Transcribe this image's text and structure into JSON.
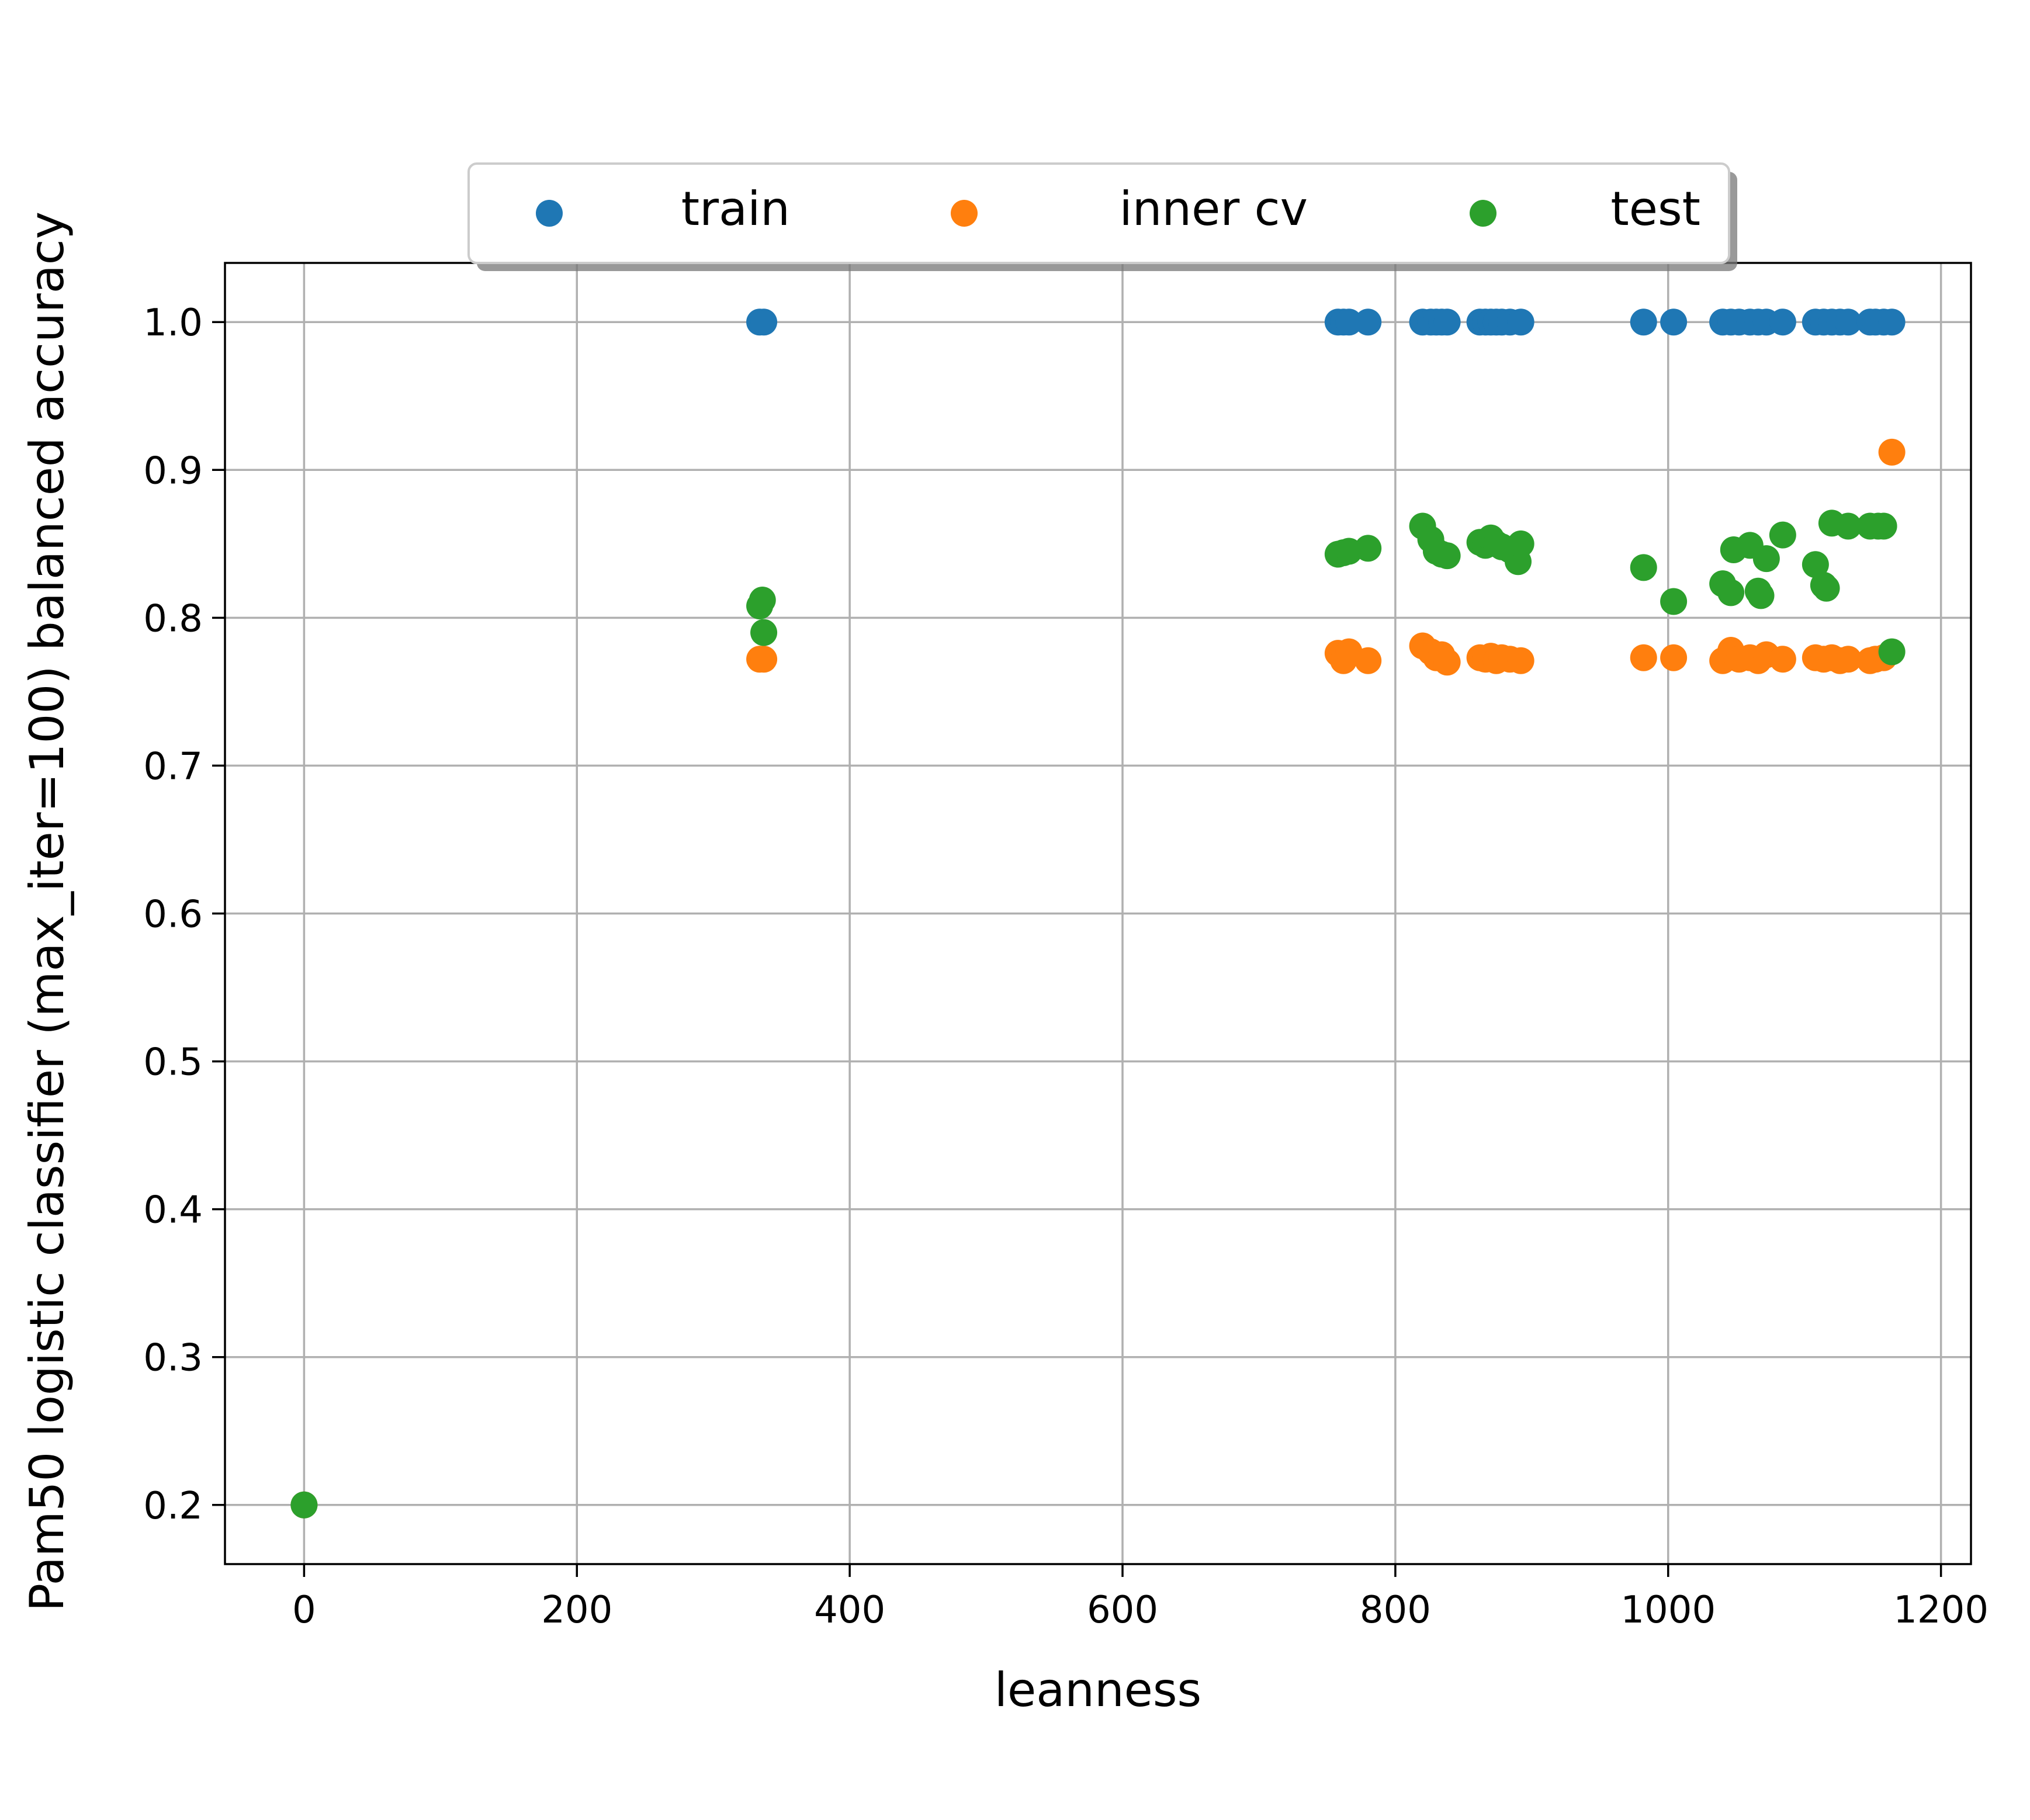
{
  "chart_data": {
    "type": "scatter",
    "title": "",
    "xlabel": "leanness",
    "ylabel": "Pam50 logistic classifier (max_iter=100) balanced accuracy",
    "xlim": [
      -58,
      1222
    ],
    "ylim": [
      0.16,
      1.04
    ],
    "xticks": [
      0,
      200,
      400,
      600,
      800,
      1000,
      1200
    ],
    "xtick_labels": [
      "0",
      "200",
      "400",
      "600",
      "800",
      "1000",
      "1200"
    ],
    "yticks": [
      0.2,
      0.3,
      0.4,
      0.5,
      0.6,
      0.7,
      0.8,
      0.9,
      1.0
    ],
    "ytick_labels": [
      "0.2",
      "0.3",
      "0.4",
      "0.5",
      "0.6",
      "0.7",
      "0.8",
      "0.9",
      "1.0"
    ],
    "grid": true,
    "legend": {
      "placement": "top-center",
      "columns": 3
    },
    "series": [
      {
        "name": "train",
        "color": "#1f77b4",
        "points": [
          [
            0,
            0.2
          ],
          [
            334,
            1.0
          ],
          [
            337,
            1.0
          ],
          [
            758,
            1.0
          ],
          [
            762,
            1.0
          ],
          [
            766,
            1.0
          ],
          [
            780,
            1.0
          ],
          [
            820,
            1.0
          ],
          [
            826,
            1.0
          ],
          [
            830,
            1.0
          ],
          [
            834,
            1.0
          ],
          [
            838,
            1.0
          ],
          [
            862,
            1.0
          ],
          [
            866,
            1.0
          ],
          [
            870,
            1.0
          ],
          [
            874,
            1.0
          ],
          [
            878,
            1.0
          ],
          [
            884,
            1.0
          ],
          [
            892,
            1.0
          ],
          [
            982,
            1.0
          ],
          [
            1004,
            1.0
          ],
          [
            1040,
            1.0
          ],
          [
            1046,
            1.0
          ],
          [
            1052,
            1.0
          ],
          [
            1060,
            1.0
          ],
          [
            1066,
            1.0
          ],
          [
            1072,
            1.0
          ],
          [
            1084,
            1.0
          ],
          [
            1108,
            1.0
          ],
          [
            1114,
            1.0
          ],
          [
            1120,
            1.0
          ],
          [
            1126,
            1.0
          ],
          [
            1132,
            1.0
          ],
          [
            1148,
            1.0
          ],
          [
            1152,
            1.0
          ],
          [
            1158,
            1.0
          ],
          [
            1164,
            1.0
          ]
        ]
      },
      {
        "name": "inner cv",
        "color": "#ff7f0e",
        "points": [
          [
            0,
            0.2
          ],
          [
            334,
            0.772
          ],
          [
            337,
            0.772
          ],
          [
            758,
            0.776
          ],
          [
            762,
            0.771
          ],
          [
            766,
            0.777
          ],
          [
            780,
            0.771
          ],
          [
            820,
            0.781
          ],
          [
            826,
            0.777
          ],
          [
            830,
            0.773
          ],
          [
            834,
            0.775
          ],
          [
            838,
            0.77
          ],
          [
            862,
            0.773
          ],
          [
            866,
            0.772
          ],
          [
            870,
            0.774
          ],
          [
            874,
            0.771
          ],
          [
            878,
            0.773
          ],
          [
            884,
            0.772
          ],
          [
            892,
            0.771
          ],
          [
            982,
            0.773
          ],
          [
            1004,
            0.773
          ],
          [
            1040,
            0.771
          ],
          [
            1046,
            0.778
          ],
          [
            1052,
            0.772
          ],
          [
            1060,
            0.773
          ],
          [
            1066,
            0.771
          ],
          [
            1072,
            0.775
          ],
          [
            1084,
            0.772
          ],
          [
            1108,
            0.773
          ],
          [
            1114,
            0.772
          ],
          [
            1120,
            0.773
          ],
          [
            1126,
            0.771
          ],
          [
            1132,
            0.772
          ],
          [
            1148,
            0.771
          ],
          [
            1152,
            0.772
          ],
          [
            1158,
            0.773
          ],
          [
            1164,
            0.912
          ]
        ]
      },
      {
        "name": "test",
        "color": "#2ca02c",
        "points": [
          [
            0,
            0.2
          ],
          [
            334,
            0.808
          ],
          [
            336,
            0.812
          ],
          [
            337,
            0.79
          ],
          [
            758,
            0.843
          ],
          [
            762,
            0.844
          ],
          [
            766,
            0.845
          ],
          [
            780,
            0.847
          ],
          [
            820,
            0.862
          ],
          [
            826,
            0.853
          ],
          [
            830,
            0.845
          ],
          [
            834,
            0.843
          ],
          [
            838,
            0.842
          ],
          [
            862,
            0.851
          ],
          [
            866,
            0.849
          ],
          [
            870,
            0.854
          ],
          [
            874,
            0.85
          ],
          [
            878,
            0.848
          ],
          [
            884,
            0.846
          ],
          [
            890,
            0.838
          ],
          [
            892,
            0.85
          ],
          [
            982,
            0.834
          ],
          [
            1004,
            0.811
          ],
          [
            1040,
            0.823
          ],
          [
            1046,
            0.817
          ],
          [
            1048,
            0.846
          ],
          [
            1060,
            0.849
          ],
          [
            1066,
            0.818
          ],
          [
            1068,
            0.815
          ],
          [
            1072,
            0.84
          ],
          [
            1084,
            0.856
          ],
          [
            1108,
            0.836
          ],
          [
            1114,
            0.822
          ],
          [
            1116,
            0.82
          ],
          [
            1120,
            0.864
          ],
          [
            1132,
            0.862
          ],
          [
            1148,
            0.862
          ],
          [
            1154,
            0.862
          ],
          [
            1158,
            0.862
          ],
          [
            1164,
            0.777
          ]
        ]
      }
    ]
  }
}
